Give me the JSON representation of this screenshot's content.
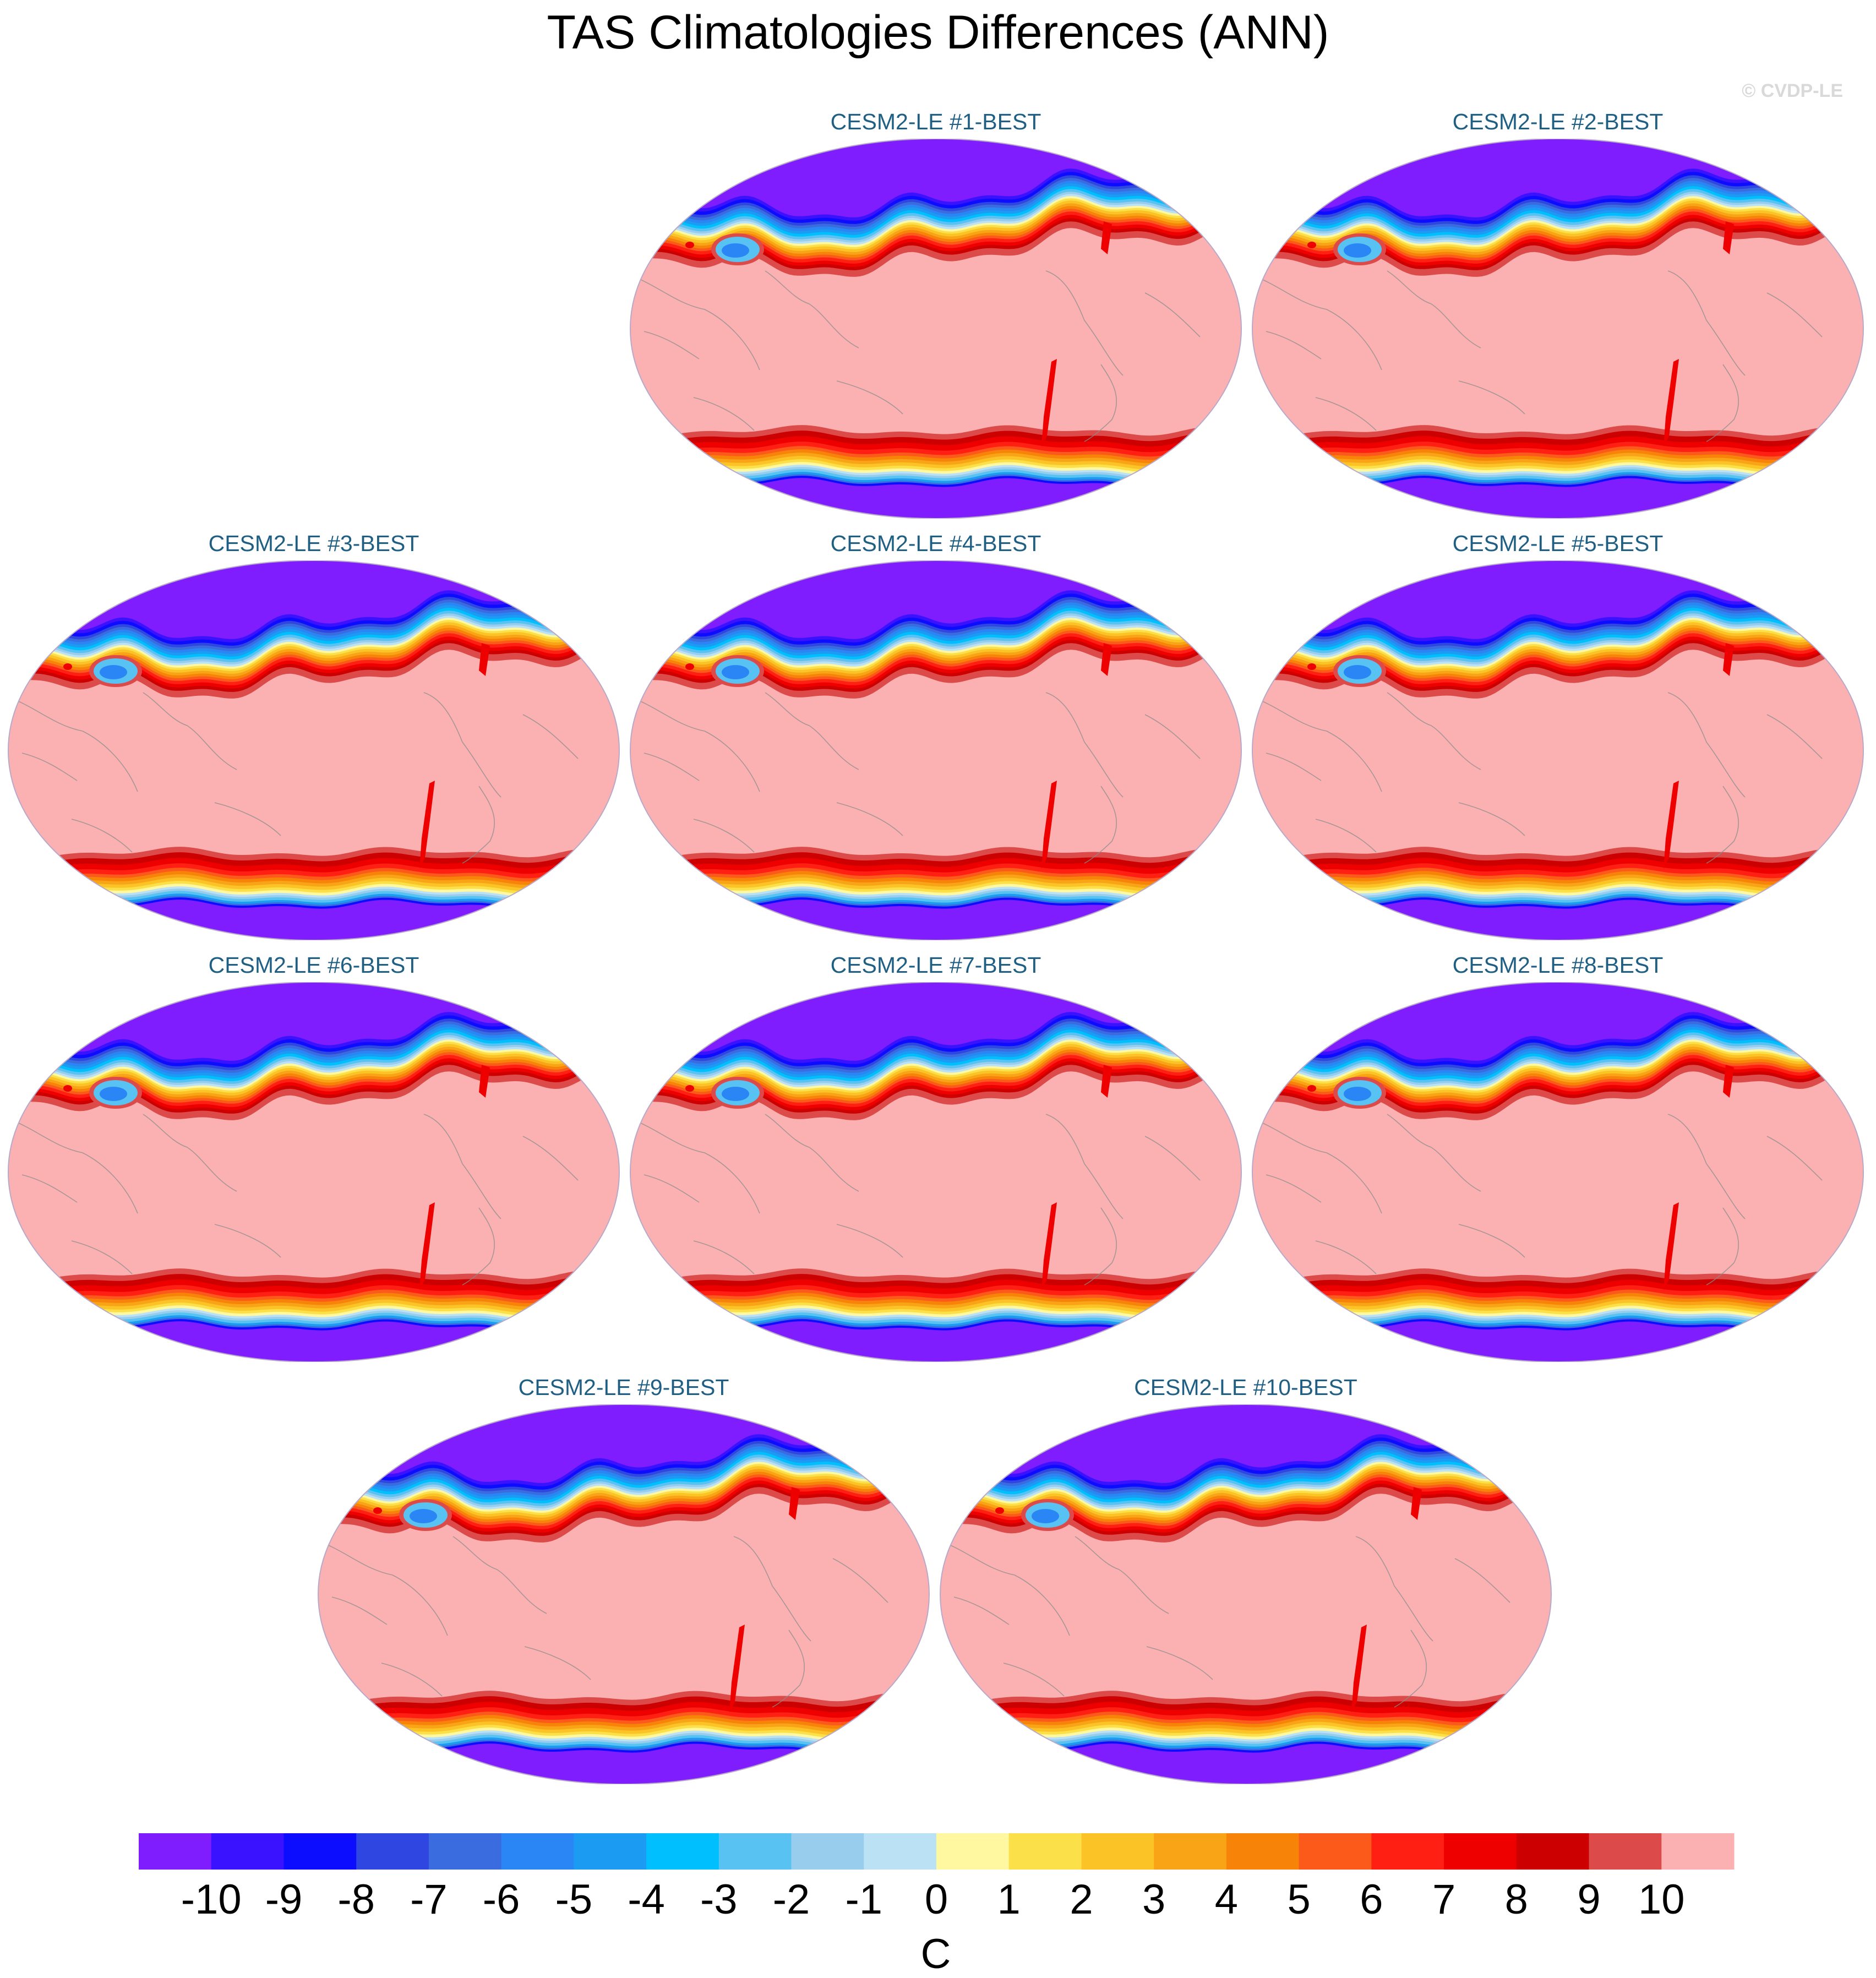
{
  "title": "TAS Climatologies Differences (ANN)",
  "watermark": "© CVDP-LE",
  "panels": [
    {
      "title": "CESM2-LE #1-BEST"
    },
    {
      "title": "CESM2-LE #2-BEST"
    },
    {
      "title": "CESM2-LE #3-BEST"
    },
    {
      "title": "CESM2-LE #4-BEST"
    },
    {
      "title": "CESM2-LE #5-BEST"
    },
    {
      "title": "CESM2-LE #6-BEST"
    },
    {
      "title": "CESM2-LE #7-BEST"
    },
    {
      "title": "CESM2-LE #8-BEST"
    },
    {
      "title": "CESM2-LE #9-BEST"
    },
    {
      "title": "CESM2-LE #10-BEST"
    }
  ],
  "chart_data": {
    "type": "heatmap",
    "title": "TAS Climatologies Differences (ANN)",
    "projection": "Robinson (global map, Pacific-centered)",
    "maps": [
      "CESM2-LE #1-BEST",
      "CESM2-LE #2-BEST",
      "CESM2-LE #3-BEST",
      "CESM2-LE #4-BEST",
      "CESM2-LE #5-BEST",
      "CESM2-LE #6-BEST",
      "CESM2-LE #7-BEST",
      "CESM2-LE #8-BEST",
      "CESM2-LE #9-BEST",
      "CESM2-LE #10-BEST"
    ],
    "colorbar": {
      "unit": "C",
      "tick_labels": [
        "-10",
        "-9",
        "-8",
        "-7",
        "-6",
        "-5",
        "-4",
        "-3",
        "-2",
        "-1",
        "0",
        "1",
        "2",
        "3",
        "4",
        "5",
        "6",
        "7",
        "8",
        "9",
        "10"
      ],
      "colors": [
        "#7f1dff",
        "#3a12ff",
        "#0c0cff",
        "#3046e0",
        "#3a6cdf",
        "#2b86f5",
        "#1b9cf2",
        "#00bfff",
        "#58c3f2",
        "#98cdee",
        "#bbe1f5",
        "#fff8a0",
        "#fbe04a",
        "#fcc326",
        "#f8a416",
        "#f88309",
        "#fc5a1a",
        "#ff1f13",
        "#ee0000",
        "#cc0000",
        "#dd4a4a",
        "#fbb1b1"
      ],
      "position": "bottom"
    },
    "pattern": {
      "tropics_midlatitudes": "10+ (light pink)",
      "northern_high_latitudes": "-10 or below (purple) with warm gradient band toward mid-latitudes",
      "southern_ocean_band": "warm band 1 to 10",
      "antarctica": "-10 or below (purple)"
    }
  }
}
